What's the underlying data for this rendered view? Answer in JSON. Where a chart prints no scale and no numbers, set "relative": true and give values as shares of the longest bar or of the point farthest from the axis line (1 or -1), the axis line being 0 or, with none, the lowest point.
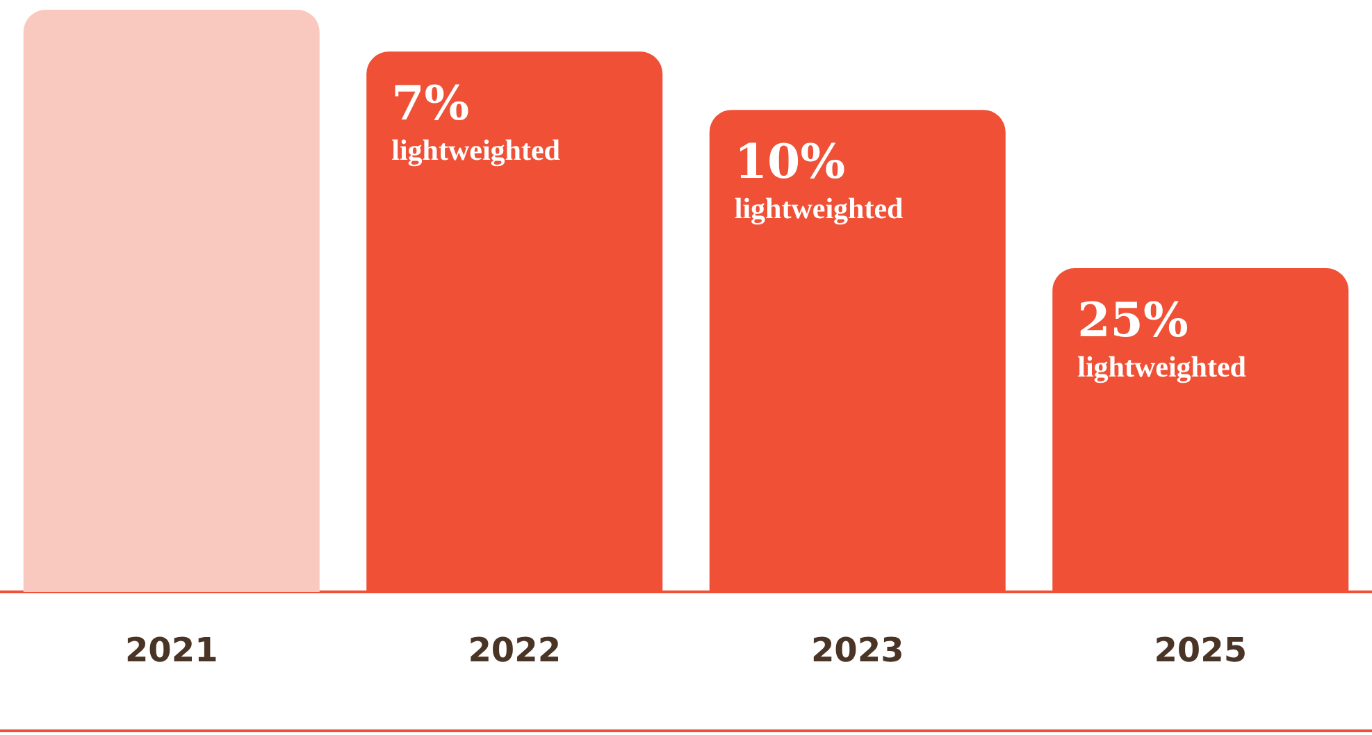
{
  "chart_data": {
    "type": "bar",
    "relative": true,
    "categories": [
      "2021",
      "2022",
      "2023",
      "2025"
    ],
    "values": [
      1,
      0.928,
      0.828,
      0.556
    ],
    "colors": [
      "#f9c9bf",
      "#ef5036",
      "#ef5036",
      "#ef5036"
    ],
    "annotations": [
      "7%\nlightweighted",
      "10%\nlightweighted",
      "25%\nlightweighted"
    ]
  }
}
